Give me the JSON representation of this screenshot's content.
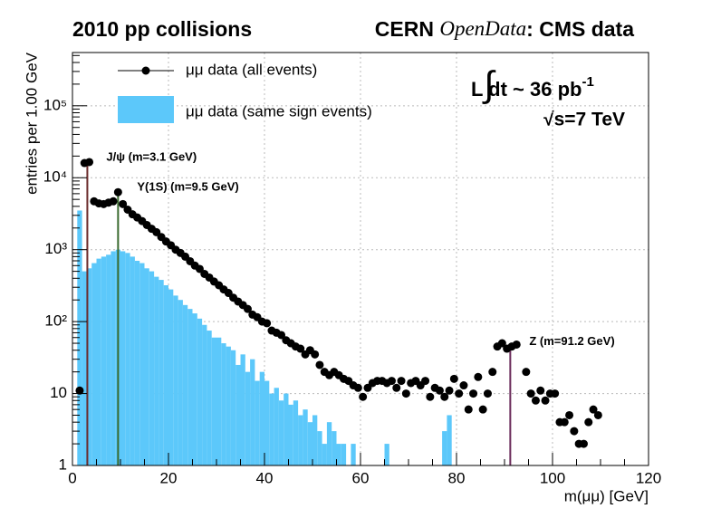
{
  "chart_data": {
    "type": "histogram",
    "title": "2010 pp collisions",
    "title_right": [
      "CERN",
      "OpenData",
      ": CMS data"
    ],
    "luminosity": [
      "∫",
      "L dt ~ 36 pb",
      "-1"
    ],
    "energy": "√s=7 TeV",
    "xlabel": "m(μμ) [GeV]",
    "ylabel": "entries per 1.00 GeV",
    "xlim": [
      0,
      120
    ],
    "ylim": [
      1,
      550000
    ],
    "log_y": true,
    "grid": true,
    "xticks": [
      0,
      20,
      40,
      60,
      80,
      100,
      120
    ],
    "yticks": [
      1,
      10,
      {
        "value": 100,
        "label": "10²"
      },
      {
        "value": 1000,
        "label": "10³"
      },
      {
        "value": 10000,
        "label": "10⁴"
      },
      {
        "value": 100000,
        "label": "10⁵"
      }
    ],
    "series": [
      {
        "name": "μμ data (all events)",
        "color": "#000000",
        "kind": "points",
        "x": [
          1.5,
          2.5,
          3.5,
          4.5,
          5.5,
          6.5,
          7.5,
          8.5,
          9.5,
          10.5,
          11.5,
          12.5,
          13.5,
          14.5,
          15.5,
          16.5,
          17.5,
          18.5,
          19.5,
          20.5,
          21.5,
          22.5,
          23.5,
          24.5,
          25.5,
          26.5,
          27.5,
          28.5,
          29.5,
          30.5,
          31.5,
          32.5,
          33.5,
          34.5,
          35.5,
          36.5,
          37.5,
          38.5,
          39.5,
          40.5,
          41.5,
          42.5,
          43.5,
          44.5,
          45.5,
          46.5,
          47.5,
          48.5,
          49.5,
          50.5,
          51.5,
          52.5,
          53.5,
          54.5,
          55.5,
          56.5,
          57.5,
          58.5,
          59.5,
          60.5,
          61.5,
          62.5,
          63.5,
          64.5,
          65.5,
          66.5,
          67.5,
          68.5,
          69.5,
          70.5,
          71.5,
          72.5,
          73.5,
          74.5,
          75.5,
          76.5,
          77.5,
          78.5,
          79.5,
          80.5,
          81.5,
          82.5,
          83.5,
          84.5,
          85.5,
          86.5,
          87.5,
          88.5,
          89.5,
          90.5,
          91.5,
          92.5,
          94.5,
          95.5,
          96.5,
          97.5,
          98.5,
          99.5,
          100.5,
          101.5,
          102.5,
          103.5,
          104.5,
          105.5,
          106.5,
          107.5,
          108.5,
          109.5
        ],
        "values": [
          11,
          16000,
          16500,
          4700,
          4400,
          4300,
          4500,
          4700,
          6300,
          4300,
          3600,
          3100,
          2800,
          2500,
          2200,
          1950,
          1750,
          1500,
          1300,
          1150,
          1000,
          900,
          800,
          690,
          600,
          540,
          460,
          410,
          360,
          320,
          280,
          250,
          215,
          190,
          170,
          150,
          125,
          115,
          100,
          95,
          75,
          70,
          65,
          55,
          50,
          45,
          42,
          35,
          40,
          35,
          25,
          20,
          18,
          20,
          18,
          16,
          15,
          13,
          12,
          9,
          12,
          14,
          15,
          15,
          14,
          15,
          12,
          15,
          10,
          14,
          15,
          13,
          15,
          9,
          12,
          11,
          9,
          11,
          16,
          10,
          13,
          6,
          10,
          17,
          6,
          10,
          20,
          45,
          50,
          42,
          45,
          48,
          20,
          10,
          8,
          11,
          8,
          10,
          10,
          4,
          4,
          5,
          3,
          2,
          2,
          4,
          6,
          5
        ]
      },
      {
        "name": "μμ data (same sign events)",
        "color": "#5cc8fa",
        "kind": "histogram",
        "bins": [
          0,
          1,
          2,
          3,
          4,
          5,
          6,
          7,
          8,
          9,
          10,
          11,
          12,
          13,
          14,
          15,
          16,
          17,
          18,
          19,
          20,
          21,
          22,
          23,
          24,
          25,
          26,
          27,
          28,
          29,
          30,
          31,
          32,
          33,
          34,
          35,
          36,
          37,
          38,
          39,
          40,
          41,
          42,
          43,
          44,
          45,
          46,
          47,
          48,
          49,
          50,
          51,
          52,
          53,
          54,
          55,
          56,
          57,
          58,
          59,
          60,
          61,
          62,
          63,
          64,
          65,
          66,
          67,
          68,
          69,
          70,
          71,
          72,
          73,
          74,
          75,
          76,
          77,
          78,
          79,
          80,
          81,
          82,
          83,
          84,
          85,
          86,
          87,
          88,
          89,
          90,
          91,
          92,
          93,
          94,
          95,
          96,
          97,
          98,
          99,
          100,
          101,
          102,
          103,
          104,
          105,
          106,
          107,
          108,
          109,
          110
        ],
        "values": [
          0,
          3500,
          500,
          550,
          650,
          750,
          800,
          850,
          950,
          1000,
          950,
          900,
          800,
          700,
          650,
          550,
          500,
          420,
          380,
          320,
          280,
          230,
          200,
          170,
          150,
          130,
          110,
          90,
          75,
          60,
          60,
          50,
          45,
          40,
          25,
          35,
          20,
          30,
          15,
          20,
          15,
          10,
          12,
          8,
          10,
          7,
          8,
          5,
          6,
          4,
          5,
          3,
          2,
          4,
          3,
          2,
          2,
          1,
          2,
          0,
          1,
          0,
          0,
          1,
          0,
          2,
          1,
          0,
          1,
          0,
          0,
          0,
          0,
          0,
          0,
          0,
          0,
          3,
          5,
          0,
          0,
          0,
          0,
          1,
          0,
          0,
          0,
          0,
          0,
          0,
          0,
          0,
          0,
          0,
          0,
          0,
          0,
          0,
          0,
          0,
          0,
          0,
          0,
          0,
          0,
          0,
          0,
          0,
          0,
          0
        ]
      }
    ],
    "markers": [
      {
        "label": "J/ψ (m=3.1 GeV)",
        "x": 3.1,
        "ymax": 16500,
        "color": "#6b2c2c"
      },
      {
        "label": "Υ(1S) (m=9.5 GeV)",
        "x": 9.5,
        "ymax": 6300,
        "color": "#3a6b2f"
      },
      {
        "label": "Z (m=91.2 GeV)",
        "x": 91.2,
        "ymax": 45,
        "color": "#6b2c5b"
      }
    ]
  }
}
